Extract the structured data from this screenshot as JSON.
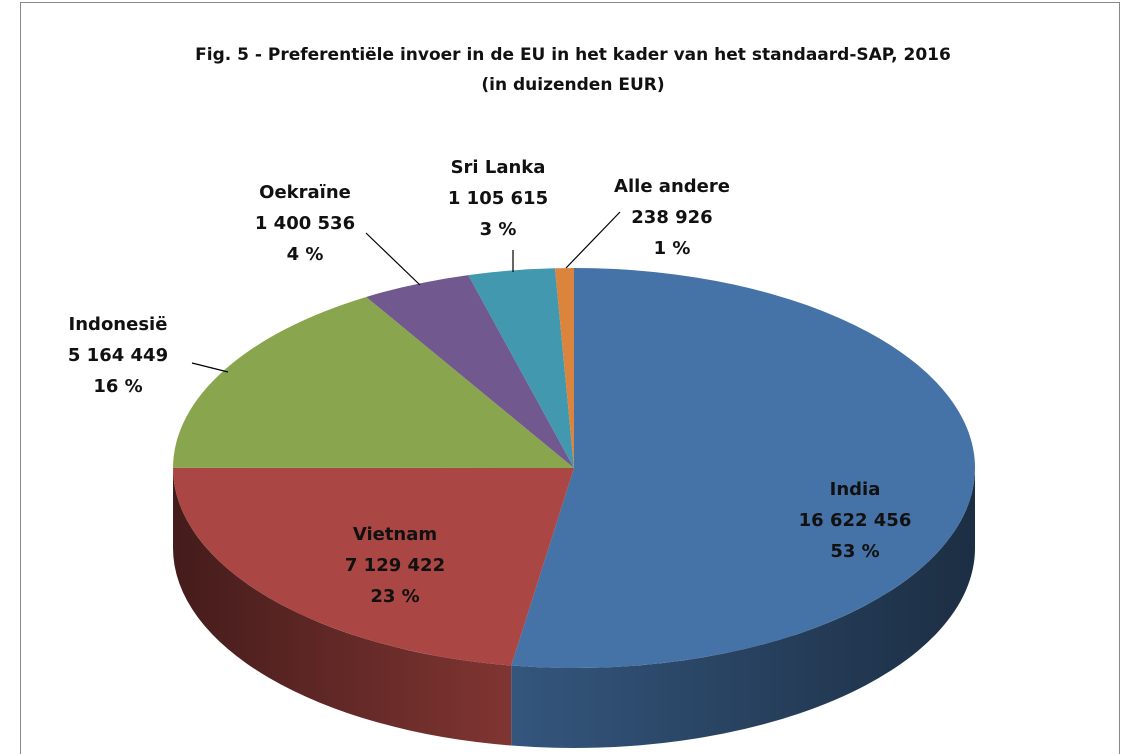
{
  "chart_data": {
    "type": "pie3d",
    "title": "Fig. 5 - Preferentiële invoer in de EU in het kader van het standaard-SAP,  2016 (in duizenden EUR)",
    "categories": [
      "India",
      "Vietnam",
      "Indonesië",
      "Oekraïne",
      "Sri Lanka",
      "Alle andere"
    ],
    "values": [
      16622456,
      7129422,
      5164449,
      1400536,
      1105615,
      238926
    ],
    "value_labels": [
      "16 622 456",
      "7 129 422",
      "5 164 449",
      "1 400 536",
      "1 105 615",
      "238 926"
    ],
    "percent_labels": [
      "53 %",
      "23 %",
      "16 %",
      "4 %",
      "3 %",
      "1 %"
    ],
    "colors": [
      "#4572a7",
      "#aa4643",
      "#89a54e",
      "#71588f",
      "#4198af",
      "#db843d"
    ]
  }
}
